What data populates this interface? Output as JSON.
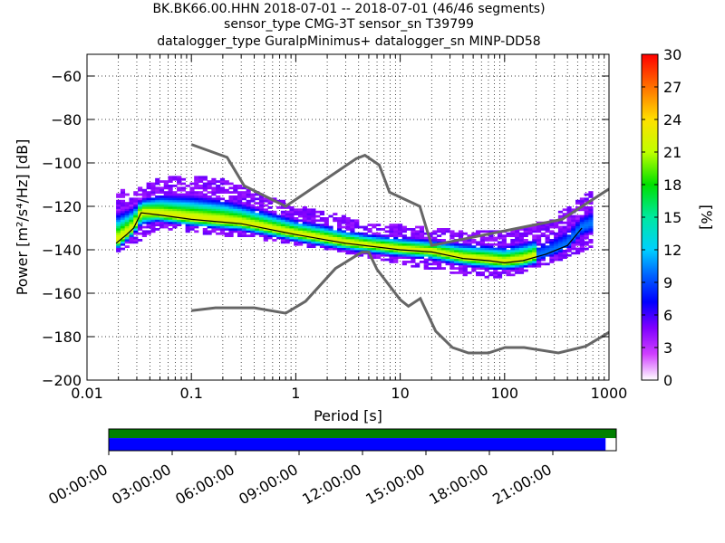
{
  "title": {
    "line1": "BK.BK66.00.HHN   2018-07-01 -- 2018-07-01  (46/46 segments)",
    "line2": "sensor_type CMG-3T sensor_sn T39799",
    "line3": "datalogger_type GuralpMinimus+ datalogger_sn MINP-DD58"
  },
  "chart_data": [
    {
      "type": "heatmap",
      "xlabel": "Period [s]",
      "ylabel": "Power [m²/s⁴/Hz] [dB]",
      "xscale": "log",
      "xlim": [
        0.01,
        1000
      ],
      "ylim": [
        -200,
        -50
      ],
      "x_ticks": [
        0.01,
        0.1,
        1,
        10,
        100,
        1000
      ],
      "x_tick_labels": [
        "0.01",
        "0.1",
        "1",
        "10",
        "100",
        "1000"
      ],
      "y_ticks": [
        -200,
        -180,
        -160,
        -140,
        -120,
        -100,
        -80,
        -60
      ],
      "y_tick_labels": [
        "−200",
        "−180",
        "−160",
        "−140",
        "−120",
        "−100",
        "−80",
        "−60"
      ],
      "grid": true,
      "colorbar": {
        "label": "[%]",
        "range": [
          0,
          30
        ],
        "ticks": [
          "0",
          "3",
          "6",
          "9",
          "12",
          "15",
          "18",
          "21",
          "24",
          "27",
          "30"
        ],
        "colormap": "pqlx"
      },
      "noise_models": [
        {
          "name": "",
          "points": [
            [
              0.1,
              -91.5
            ],
            [
              0.22,
              -97.4
            ],
            [
              0.32,
              -110.5
            ],
            [
              0.8,
              -120.0
            ],
            [
              3.8,
              -98.0
            ],
            [
              4.6,
              -96.5
            ],
            [
              6.3,
              -101.0
            ],
            [
              7.9,
              -113.5
            ],
            [
              15.4,
              -120.0
            ],
            [
              20,
              -138.0
            ],
            [
              354.8,
              -126.0
            ],
            [
              1000,
              -112.0
            ]
          ]
        },
        {
          "name": "",
          "points": [
            [
              0.1,
              -168.0
            ],
            [
              0.17,
              -166.7
            ],
            [
              0.4,
              -166.7
            ],
            [
              0.8,
              -169.2
            ],
            [
              1.24,
              -163.7
            ],
            [
              2.4,
              -148.6
            ],
            [
              4.3,
              -141.1
            ],
            [
              5.0,
              -141.1
            ],
            [
              6.0,
              -149.0
            ],
            [
              10.0,
              -163.0
            ],
            [
              12.0,
              -166.0
            ],
            [
              15.6,
              -162.4
            ],
            [
              21.9,
              -177.5
            ],
            [
              31.6,
              -185.0
            ],
            [
              45.0,
              -187.5
            ],
            [
              70.0,
              -187.5
            ],
            [
              101.0,
              -185.0
            ],
            [
              154.0,
              -185.0
            ],
            [
              328.0,
              -187.5
            ],
            [
              600.0,
              -184.4
            ],
            [
              1000,
              -178.0
            ]
          ]
        }
      ],
      "mean_curve": {
        "points": [
          [
            0.019,
            -137.0
          ],
          [
            0.024,
            -133.0
          ],
          [
            0.028,
            -130.0
          ],
          [
            0.033,
            -123.0
          ],
          [
            0.05,
            -124.0
          ],
          [
            0.1,
            -126.0
          ],
          [
            0.3,
            -128.0
          ],
          [
            1.0,
            -133.0
          ],
          [
            3.0,
            -137.0
          ],
          [
            10.0,
            -140.0
          ],
          [
            20.0,
            -141.0
          ],
          [
            40.0,
            -144.0
          ],
          [
            70.0,
            -145.0
          ],
          [
            100.0,
            -146.0
          ],
          [
            150.0,
            -145.0
          ],
          [
            250.0,
            -142.0
          ],
          [
            400.0,
            -138.0
          ],
          [
            550.0,
            -130.0
          ]
        ]
      },
      "density_band": {
        "center": [
          [
            0.019,
            -137.0
          ],
          [
            0.024,
            -133.0
          ],
          [
            0.028,
            -130.0
          ],
          [
            0.033,
            -123.0
          ],
          [
            0.05,
            -124.0
          ],
          [
            0.1,
            -126.0
          ],
          [
            0.3,
            -128.0
          ],
          [
            1.0,
            -133.0
          ],
          [
            3.0,
            -137.0
          ],
          [
            10.0,
            -140.0
          ],
          [
            20.0,
            -141.0
          ],
          [
            40.0,
            -144.0
          ],
          [
            70.0,
            -145.0
          ],
          [
            100.0,
            -146.0
          ],
          [
            150.0,
            -145.0
          ],
          [
            250.0,
            -142.0
          ],
          [
            400.0,
            -138.0
          ],
          [
            550.0,
            -130.0
          ],
          [
            700.0,
            -128.0
          ]
        ],
        "upper_outliers": [
          [
            0.03,
            -113.0
          ],
          [
            0.05,
            -108.0
          ],
          [
            0.1,
            -107.0
          ],
          [
            0.2,
            -109.0
          ],
          [
            0.5,
            -116.0
          ],
          [
            1.0,
            -121.0
          ],
          [
            2.0,
            -124.0
          ],
          [
            5.0,
            -129.0
          ],
          [
            10.0,
            -130.0
          ],
          [
            30.0,
            -132.0
          ],
          [
            100.0,
            -133.0
          ],
          [
            250.0,
            -128.0
          ],
          [
            600.0,
            -116.0
          ],
          [
            700.0,
            -114.0
          ]
        ],
        "lower_outliers": [
          [
            0.019,
            -141.0
          ],
          [
            0.05,
            -130.0
          ],
          [
            0.2,
            -133.0
          ],
          [
            1.0,
            -137.0
          ],
          [
            3.0,
            -141.0
          ],
          [
            10.0,
            -146.0
          ],
          [
            30.0,
            -150.0
          ],
          [
            80.0,
            -153.0
          ],
          [
            150.0,
            -150.0
          ],
          [
            300.0,
            -145.0
          ],
          [
            600.0,
            -140.0
          ]
        ]
      }
    },
    {
      "type": "timeline",
      "tick_labels": [
        "00:00:00",
        "03:00:00",
        "06:00:00",
        "09:00:00",
        "12:00:00",
        "15:00:00",
        "18:00:00",
        "21:00:00"
      ],
      "data_coverage_fraction": 1.0,
      "psd_coverage_fraction": 0.979,
      "colors": {
        "data": "#008000",
        "psd": "#0000ff"
      }
    }
  ]
}
